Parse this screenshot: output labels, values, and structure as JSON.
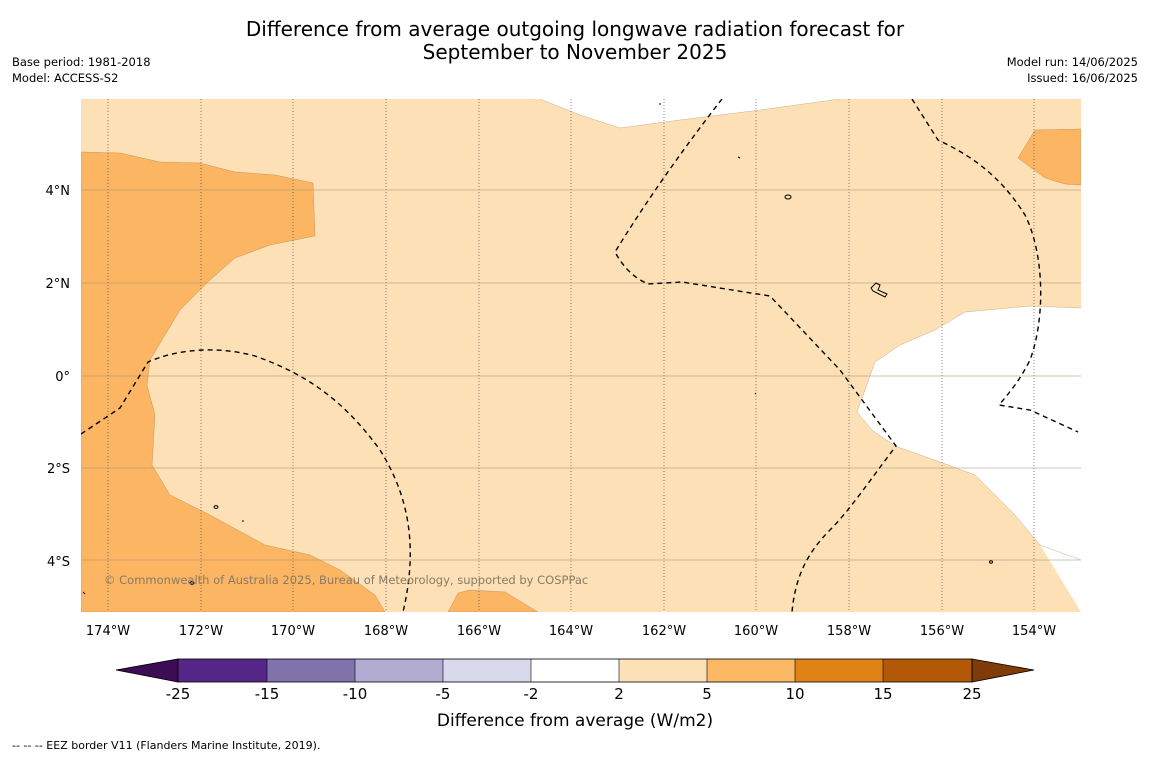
{
  "header": {
    "title_line1": "Difference from average outgoing longwave radiation forecast for",
    "title_line2": "September to November 2025",
    "base_period": "Base period: 1981-2018",
    "model": "Model: ACCESS-S2",
    "model_run": "Model run: 14/06/2025",
    "issued": "Issued: 16/06/2025"
  },
  "map": {
    "lon_labels": [
      "174°W",
      "172°W",
      "170°W",
      "168°W",
      "166°W",
      "164°W",
      "162°W",
      "160°W",
      "158°W",
      "156°W",
      "154°W"
    ],
    "lat_labels": [
      "4°N",
      "2°N",
      "0°",
      "2°S",
      "4°S"
    ],
    "copyright": "© Commonwealth of Australia 2025, Bureau of Meteorology, supported by COSPPac",
    "fill_colors": {
      "light_orange": "#fde0b5",
      "orange": "#fbb563",
      "white": "#ffffff"
    }
  },
  "colorbar": {
    "title": "Difference from average (W/m2)",
    "ticks": [
      "-25",
      "-15",
      "-10",
      "-5",
      "-2",
      "2",
      "5",
      "10",
      "15",
      "25"
    ],
    "colors": [
      "#3c0c55",
      "#542788",
      "#8073ac",
      "#b2abd2",
      "#d8daeb",
      "#ffffff",
      "#fee0b6",
      "#fdb863",
      "#e08214",
      "#b35806",
      "#7f3b08"
    ]
  },
  "footer": {
    "legend_text": "--  --  -- EEZ border V11 (Flanders Marine Institute, 2019)."
  }
}
